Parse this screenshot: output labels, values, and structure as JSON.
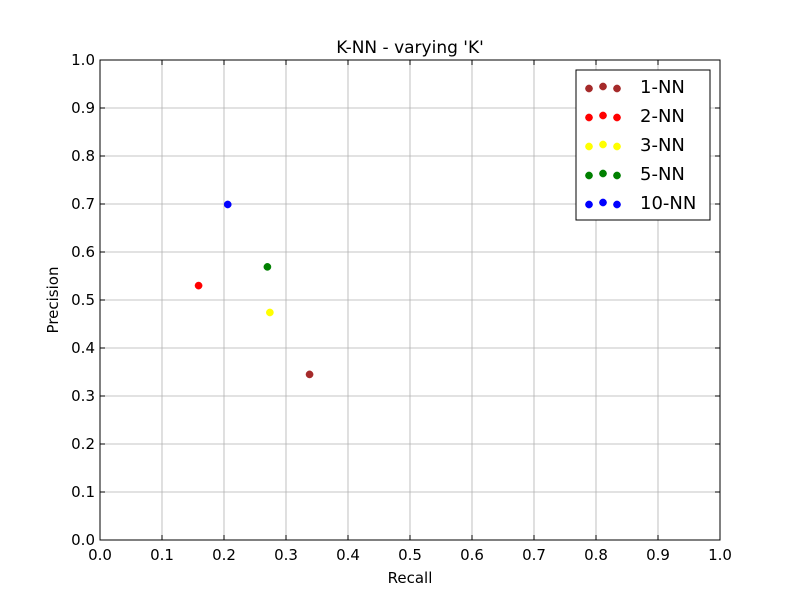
{
  "chart_data": {
    "type": "scatter",
    "title": "K-NN - varying 'K'",
    "xlabel": "Recall",
    "ylabel": "Precision",
    "xlim": [
      0.0,
      1.0
    ],
    "ylim": [
      0.0,
      1.0
    ],
    "xticks": [
      "0.0",
      "0.1",
      "0.2",
      "0.3",
      "0.4",
      "0.5",
      "0.6",
      "0.7",
      "0.8",
      "0.9",
      "1.0"
    ],
    "yticks": [
      "0.0",
      "0.1",
      "0.2",
      "0.3",
      "0.4",
      "0.5",
      "0.6",
      "0.7",
      "0.8",
      "0.9",
      "1.0"
    ],
    "grid": true,
    "legend_position": "top-right",
    "series": [
      {
        "name": "1-NN",
        "color": "#a52a2a",
        "points": [
          {
            "x": 0.338,
            "y": 0.345
          }
        ]
      },
      {
        "name": "2-NN",
        "color": "#ff0000",
        "points": [
          {
            "x": 0.159,
            "y": 0.53
          }
        ]
      },
      {
        "name": "3-NN",
        "color": "#ffff00",
        "points": [
          {
            "x": 0.274,
            "y": 0.474
          }
        ]
      },
      {
        "name": "5-NN",
        "color": "#008000",
        "points": [
          {
            "x": 0.27,
            "y": 0.569
          }
        ]
      },
      {
        "name": "10-NN",
        "color": "#0000ff",
        "points": [
          {
            "x": 0.206,
            "y": 0.699
          }
        ]
      }
    ]
  }
}
